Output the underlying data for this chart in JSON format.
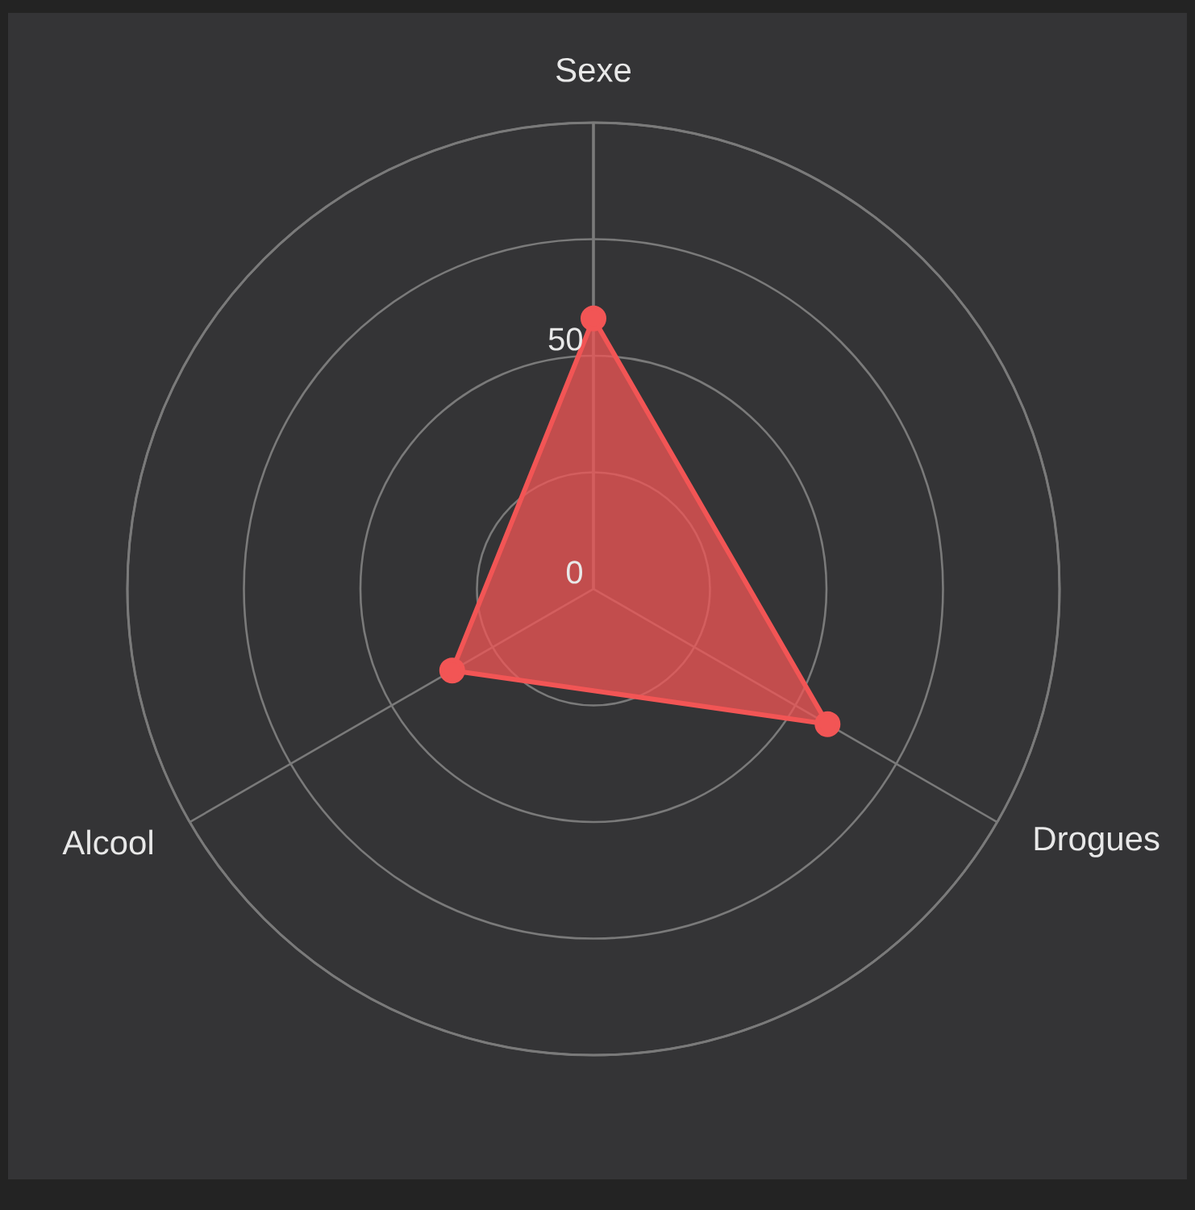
{
  "chart_data": {
    "type": "radar",
    "categories": [
      "Sexe",
      "Drogues",
      "Alcool"
    ],
    "series": [
      {
        "color": "#f25555",
        "values": [
          58,
          58,
          35
        ]
      }
    ],
    "ylim": [
      0,
      100
    ],
    "yticks": [
      0,
      50
    ],
    "grid": true,
    "marker": "circle",
    "line_style": "solid"
  }
}
